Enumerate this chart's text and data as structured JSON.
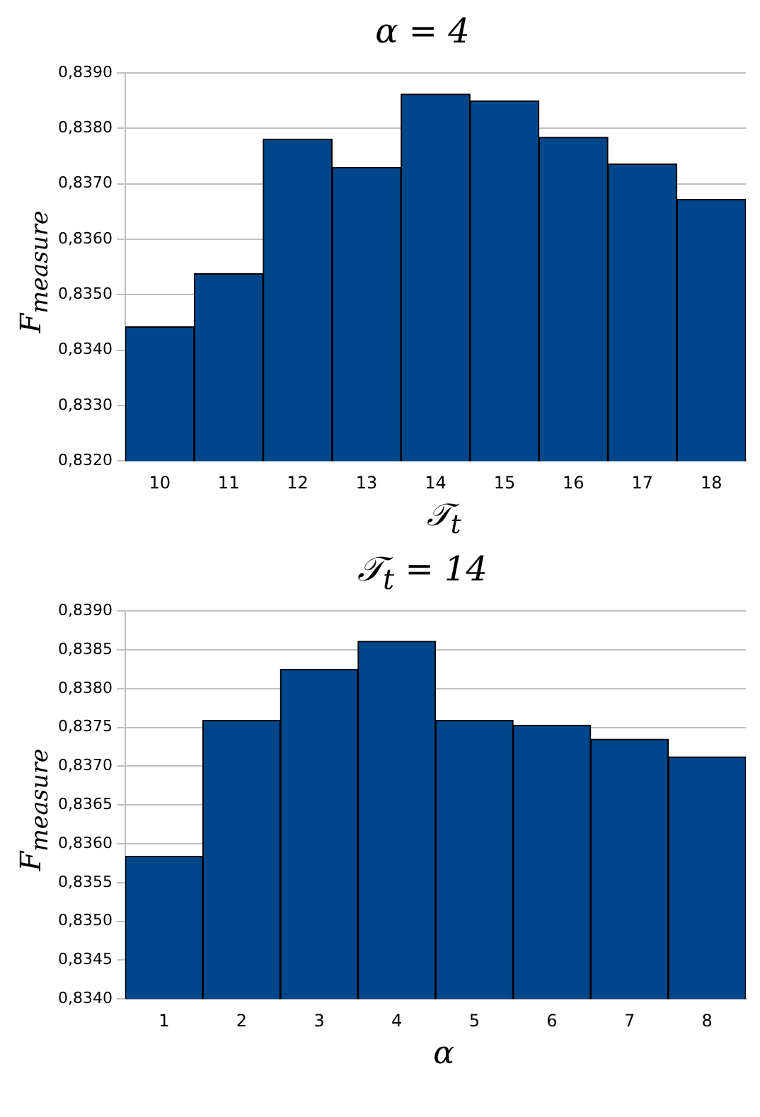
{
  "chart_data": [
    {
      "type": "bar",
      "title": "α = 4",
      "xlabel": "𝒯$_{t}$",
      "ylabel": "F$_{measure}$",
      "categories": [
        "10",
        "11",
        "12",
        "13",
        "14",
        "15",
        "16",
        "17",
        "18"
      ],
      "values": [
        0.83442,
        0.83538,
        0.83781,
        0.8373,
        0.83862,
        0.8385,
        0.83784,
        0.83736,
        0.83672
      ],
      "color": "#00468b",
      "ylim": [
        0.832,
        0.839
      ],
      "yticks": [
        {
          "value": 0.832,
          "label": "0,8320"
        },
        {
          "value": 0.833,
          "label": "0,8330"
        },
        {
          "value": 0.834,
          "label": "0,8340"
        },
        {
          "value": 0.835,
          "label": "0,8350"
        },
        {
          "value": 0.836,
          "label": "0,8360"
        },
        {
          "value": 0.837,
          "label": "0,8370"
        },
        {
          "value": 0.838,
          "label": "0,8380"
        },
        {
          "value": 0.839,
          "label": "0,8390"
        }
      ],
      "grid": "y"
    },
    {
      "type": "bar",
      "title": "𝒯$_{t}$ = 14",
      "xlabel": "α",
      "ylabel": "F$_{measure}$",
      "categories": [
        "1",
        "2",
        "3",
        "4",
        "5",
        "6",
        "7",
        "8"
      ],
      "values": [
        0.83584,
        0.83759,
        0.83825,
        0.83861,
        0.83759,
        0.83753,
        0.83735,
        0.83712
      ],
      "color": "#00468b",
      "ylim": [
        0.834,
        0.839
      ],
      "yticks": [
        {
          "value": 0.834,
          "label": "0,8340"
        },
        {
          "value": 0.8345,
          "label": "0,8345"
        },
        {
          "value": 0.835,
          "label": "0,8350"
        },
        {
          "value": 0.8355,
          "label": "0,8355"
        },
        {
          "value": 0.836,
          "label": "0,8360"
        },
        {
          "value": 0.8365,
          "label": "0,8365"
        },
        {
          "value": 0.837,
          "label": "0,8370"
        },
        {
          "value": 0.8375,
          "label": "0,8375"
        },
        {
          "value": 0.838,
          "label": "0,8380"
        },
        {
          "value": 0.8385,
          "label": "0,8385"
        },
        {
          "value": 0.839,
          "label": "0,8390"
        }
      ],
      "grid": "y"
    }
  ]
}
